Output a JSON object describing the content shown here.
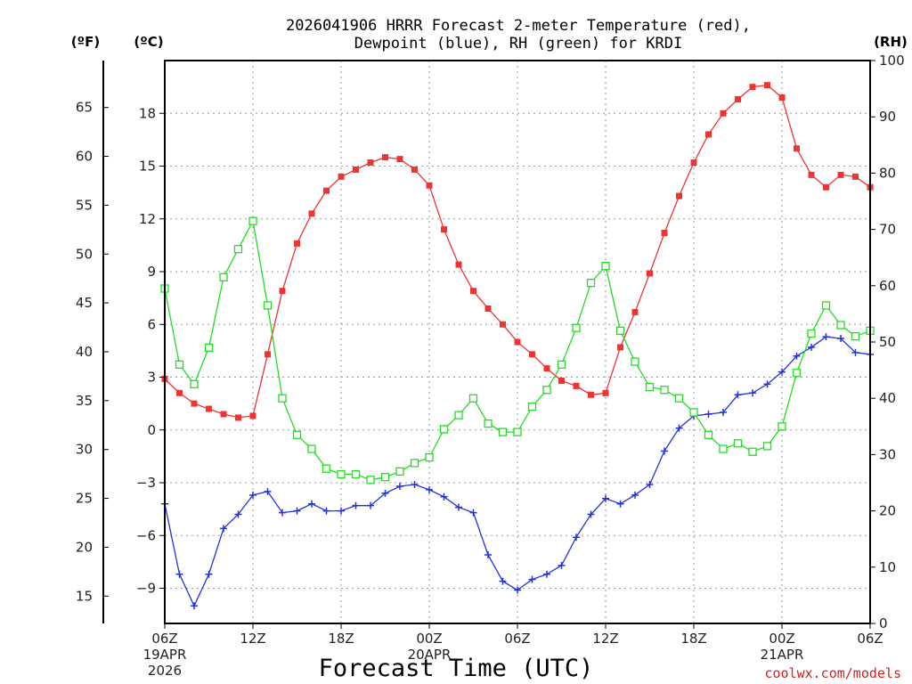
{
  "chart_data": {
    "type": "line",
    "title_line1": "2026041906 HRRR Forecast 2-meter Temperature (red),",
    "title_line2": "Dewpoint (blue), RH (green) for KRDI",
    "xlabel": "Forecast Time (UTC)",
    "credit": "coolwx.com/models",
    "y_left_units": {
      "f": "(ºF)",
      "c": "(ºC)"
    },
    "y_right_unit": "(RH)",
    "x_hours_range": [
      0,
      48
    ],
    "y_celsius_range": [
      -11,
      21
    ],
    "y_rh_range": [
      0,
      100
    ],
    "x_ticks": [
      {
        "hour": 0,
        "label": "06Z",
        "sub1": "19APR",
        "sub2": "2026"
      },
      {
        "hour": 6,
        "label": "12Z"
      },
      {
        "hour": 12,
        "label": "18Z"
      },
      {
        "hour": 18,
        "label": "00Z",
        "sub1": "20APR"
      },
      {
        "hour": 24,
        "label": "06Z"
      },
      {
        "hour": 30,
        "label": "12Z"
      },
      {
        "hour": 36,
        "label": "18Z"
      },
      {
        "hour": 42,
        "label": "00Z",
        "sub1": "21APR"
      },
      {
        "hour": 48,
        "label": "06Z"
      }
    ],
    "celsius_ticks": [
      "18",
      "15",
      "12",
      "9",
      "6",
      "3",
      "0",
      "−3",
      "−6",
      "−9"
    ],
    "fahrenheit_ticks": [
      "65",
      "60",
      "55",
      "50",
      "45",
      "40",
      "35",
      "30",
      "25",
      "20",
      "15"
    ],
    "rh_ticks": [
      "100",
      "90",
      "80",
      "70",
      "60",
      "50",
      "40",
      "30",
      "20",
      "10",
      "0"
    ],
    "series": [
      {
        "name": "Temperature",
        "units": "C",
        "color": "#ee3333",
        "marker": "filled-square",
        "values": [
          2.9,
          2.1,
          1.5,
          1.2,
          0.9,
          0.7,
          0.8,
          4.3,
          7.9,
          10.6,
          12.3,
          13.6,
          14.4,
          14.8,
          15.2,
          15.5,
          15.4,
          14.8,
          13.9,
          11.4,
          9.4,
          7.9,
          6.9,
          6.0,
          5.0,
          4.3,
          3.5,
          2.8,
          2.5,
          2.0,
          2.1,
          4.7,
          6.7,
          8.9,
          11.2,
          13.3,
          15.2,
          16.8,
          18.0,
          18.8,
          19.5,
          19.6,
          18.9,
          16.0,
          14.5,
          13.8,
          14.5,
          14.4,
          13.8
        ]
      },
      {
        "name": "Dewpoint",
        "units": "C",
        "color": "#2233dd",
        "marker": "plus",
        "values": [
          -4.2,
          -8.2,
          -10.0,
          -8.2,
          -5.6,
          -4.8,
          -3.7,
          -3.5,
          -4.7,
          -4.6,
          -4.2,
          -4.6,
          -4.6,
          -4.3,
          -4.3,
          -3.6,
          -3.2,
          -3.1,
          -3.4,
          -3.8,
          -4.4,
          -4.7,
          -7.1,
          -8.6,
          -9.1,
          -8.5,
          -8.2,
          -7.7,
          -6.1,
          -4.8,
          -3.9,
          -4.2,
          -3.7,
          -3.1,
          -1.2,
          0.1,
          0.8,
          0.9,
          1.0,
          2.0,
          2.1,
          2.6,
          3.3,
          4.2,
          4.7,
          5.3,
          5.2,
          4.4,
          4.3
        ]
      },
      {
        "name": "RH",
        "units": "%",
        "color": "#22dd22",
        "marker": "open-square",
        "values": [
          59.5,
          46.0,
          42.5,
          49.0,
          61.5,
          66.5,
          71.5,
          56.5,
          40.0,
          33.5,
          31.0,
          27.5,
          26.5,
          26.5,
          25.5,
          26.0,
          27.0,
          28.5,
          29.5,
          34.5,
          37.0,
          40.0,
          35.5,
          34.0,
          34.0,
          38.5,
          41.5,
          46.0,
          52.5,
          60.5,
          63.5,
          52.0,
          46.5,
          42.0,
          41.5,
          40.0,
          37.5,
          33.5,
          31.0,
          32.0,
          30.5,
          31.5,
          35.0,
          44.5,
          51.5,
          56.5,
          53.0,
          51.0,
          52.0
        ]
      }
    ]
  }
}
